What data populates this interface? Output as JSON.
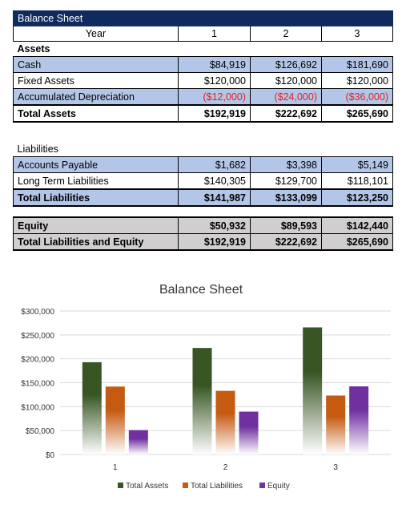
{
  "sheet": {
    "title": "Balance Sheet",
    "year_label": "Year",
    "years": [
      "1",
      "2",
      "3"
    ],
    "assets_header": "Assets",
    "assets_rows": [
      {
        "label": "Cash",
        "values": [
          "$84,919",
          "$126,692",
          "$181,690"
        ],
        "style": "blue",
        "negative": false
      },
      {
        "label": "Fixed Assets",
        "values": [
          "$120,000",
          "$120,000",
          "$120,000"
        ],
        "style": "white",
        "negative": false
      },
      {
        "label": "Accumulated Depreciation",
        "values": [
          "($12,000)",
          "($24,000)",
          "($36,000)"
        ],
        "style": "blue",
        "negative": true
      }
    ],
    "total_assets": {
      "label": "Total Assets",
      "values": [
        "$192,919",
        "$222,692",
        "$265,690"
      ]
    },
    "liabilities_header": "Liabilities",
    "liabilities_rows": [
      {
        "label": "Accounts Payable",
        "values": [
          "$1,682",
          "$3,398",
          "$5,149"
        ],
        "style": "blue"
      },
      {
        "label": "Long Term Liabilities",
        "values": [
          "$140,305",
          "$129,700",
          "$118,101"
        ],
        "style": "white"
      }
    ],
    "total_liabilities": {
      "label": "Total Liabilities",
      "values": [
        "$141,987",
        "$133,099",
        "$123,250"
      ]
    },
    "equity": {
      "label": "Equity",
      "values": [
        "$50,932",
        "$89,593",
        "$142,440"
      ]
    },
    "total_liab_equity": {
      "label": "Total Liabilities and Equity",
      "values": [
        "$192,919",
        "$222,692",
        "$265,690"
      ]
    }
  },
  "chart_data": {
    "type": "bar",
    "title": "Balance Sheet",
    "categories": [
      "1",
      "2",
      "3"
    ],
    "series": [
      {
        "name": "Total Assets",
        "values": [
          192919,
          222692,
          265690
        ],
        "color": "#375623"
      },
      {
        "name": "Total Liabilities",
        "values": [
          141987,
          133099,
          123250
        ],
        "color": "#c55a11"
      },
      {
        "name": "Equity",
        "values": [
          50932,
          89593,
          142440
        ],
        "color": "#7030a0"
      }
    ],
    "yticks": [
      "$0",
      "$50,000",
      "$100,000",
      "$150,000",
      "$200,000",
      "$250,000",
      "$300,000"
    ],
    "ylim": [
      0,
      300000
    ],
    "grid": true,
    "legend": "bottom"
  }
}
